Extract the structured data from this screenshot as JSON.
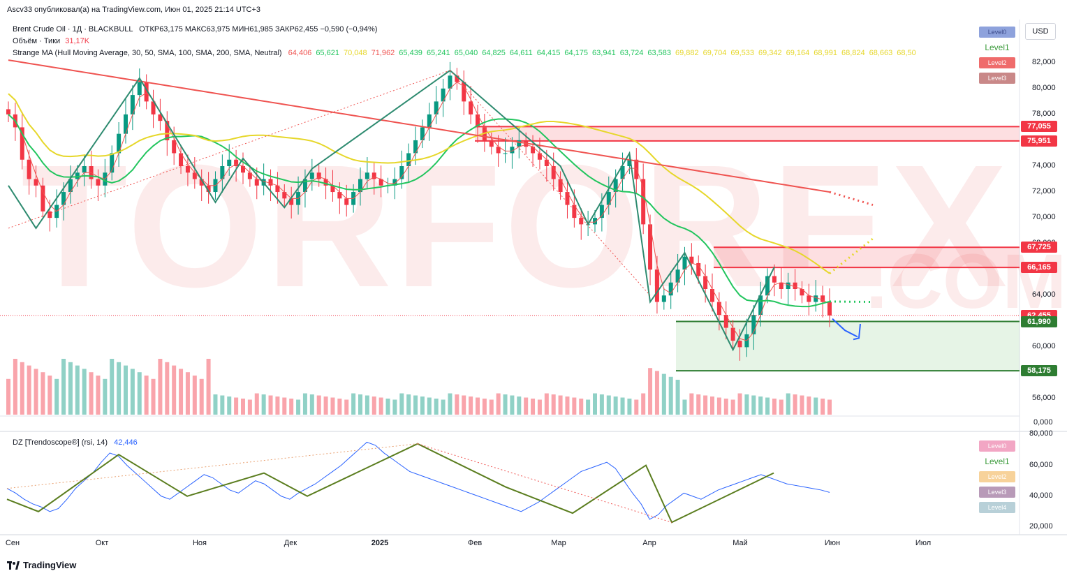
{
  "header": {
    "author_line": "Ascv33 опубликовал(а) на TradingView.com, Июн 01, 2025 21:14 UTC+3",
    "symbol_line": "Brent Crude Oil · 1Д · BLACKBULL",
    "ohlc": "ОТКР63,175  МАКС63,975  МИН61,985  ЗАКР62,455  −0,590 (−0,94%)",
    "volume_label": "Объём · Тики",
    "volume_value": "31,17K",
    "ma_label": "Strange MA (Hull Moving Average, 30, 50, SMA, 100, SMA, 200, SMA, Neutral)",
    "ma_values": [
      {
        "v": "64,406",
        "color": "#ef5350"
      },
      {
        "v": "65,621",
        "color": "#22c55e"
      },
      {
        "v": "70,048",
        "color": "#e6d72a"
      },
      {
        "v": "71,962",
        "color": "#ef5350"
      },
      {
        "v": "65,439",
        "color": "#22c55e"
      },
      {
        "v": "65,241",
        "color": "#22c55e"
      },
      {
        "v": "65,040",
        "color": "#22c55e"
      },
      {
        "v": "64,825",
        "color": "#22c55e"
      },
      {
        "v": "64,611",
        "color": "#22c55e"
      },
      {
        "v": "64,415",
        "color": "#22c55e"
      },
      {
        "v": "64,175",
        "color": "#22c55e"
      },
      {
        "v": "63,941",
        "color": "#22c55e"
      },
      {
        "v": "63,724",
        "color": "#22c55e"
      },
      {
        "v": "63,583",
        "color": "#22c55e"
      },
      {
        "v": "69,882",
        "color": "#e6d72a"
      },
      {
        "v": "69,704",
        "color": "#e6d72a"
      },
      {
        "v": "69,533",
        "color": "#e6d72a"
      },
      {
        "v": "69,342",
        "color": "#e6d72a"
      },
      {
        "v": "69,164",
        "color": "#e6d72a"
      },
      {
        "v": "68,991",
        "color": "#e6d72a"
      },
      {
        "v": "68,824",
        "color": "#e6d72a"
      },
      {
        "v": "68,663",
        "color": "#e6d72a"
      },
      {
        "v": "68,50",
        "color": "#e6d72a"
      }
    ],
    "currency": "USD"
  },
  "levels_main": [
    {
      "label": "Level0",
      "bg": "#8ea2dc",
      "fg": "#3b4a8a"
    },
    {
      "label": "Level1",
      "bg": "#ffffff",
      "fg": "#3a9a3a"
    },
    {
      "label": "Level2",
      "bg": "#ef6b6b",
      "fg": "#ffffff"
    },
    {
      "label": "Level3",
      "bg": "#c98888",
      "fg": "#ffffff"
    }
  ],
  "levels_rsi": [
    {
      "label": "Level0",
      "bg": "#f2a6c4",
      "fg": "#ffffff"
    },
    {
      "label": "Level1",
      "bg": "#ffffff",
      "fg": "#3a9a3a"
    },
    {
      "label": "Level2",
      "bg": "#f7d29a",
      "fg": "#ffffff"
    },
    {
      "label": "Level3",
      "bg": "#b89ab8",
      "fg": "#ffffff"
    },
    {
      "label": "Level4",
      "bg": "#b8d0d8",
      "fg": "#ffffff"
    }
  ],
  "watermark": {
    "main": "TORFOREX",
    "suffix": ".COM"
  },
  "rsi_panel": {
    "label": "DZ [Trendoscope®] (rsi, 14)",
    "value": "42,446"
  },
  "footer": {
    "brand": "TradingView"
  },
  "chart_data": [
    {
      "type": "candlestick",
      "title": "Brent Crude Oil · 1Д · BLACKBULL",
      "y_axis_ticks": [
        "82,000",
        "80,000",
        "78,000",
        "76,000",
        "74,000",
        "72,000",
        "70,000",
        "68,000",
        "66,000",
        "64,000",
        "62,000",
        "60,000",
        "58,000",
        "56,000"
      ],
      "y_tick_values": [
        82,
        80,
        78,
        76,
        74,
        72,
        70,
        68,
        66,
        64,
        62,
        60,
        58,
        56
      ],
      "ylim": [
        55,
        83.5
      ],
      "x_labels": [
        "Сен",
        "Окт",
        "Ноя",
        "Дек",
        "2025",
        "Фев",
        "Мар",
        "Апр",
        "Май",
        "Июн",
        "Июл"
      ],
      "price_tags": [
        {
          "value": "77,055",
          "color": "#f23645"
        },
        {
          "value": "75,951",
          "color": "#f23645"
        },
        {
          "value": "67,725",
          "color": "#f23645"
        },
        {
          "value": "66,165",
          "color": "#f23645"
        },
        {
          "value": "62,455",
          "color": "#f23645"
        },
        {
          "value": "61,990",
          "color": "#2e7d32"
        },
        {
          "value": "58,175",
          "color": "#2e7d32"
        }
      ],
      "zones": [
        {
          "type": "resistance",
          "from": 75.951,
          "to": 77.055
        },
        {
          "type": "resistance",
          "from": 66.165,
          "to": 67.725
        },
        {
          "type": "support",
          "from": 58.175,
          "to": 61.99
        }
      ],
      "zigzag_pivots": [
        {
          "date": "Сен",
          "price": 72.5
        },
        {
          "date": "Сен",
          "price": 69.2
        },
        {
          "date": "Окт",
          "price": 80.8
        },
        {
          "date": "Ноя",
          "price": 71.2
        },
        {
          "date": "Ноя",
          "price": 74.6
        },
        {
          "date": "Дек",
          "price": 70.8
        },
        {
          "date": "Дек",
          "price": 73.8
        },
        {
          "date": "2025",
          "price": 81.4
        },
        {
          "date": "Фев",
          "price": 74.0
        },
        {
          "date": "Мар",
          "price": 69.5
        },
        {
          "date": "Апр",
          "price": 75.0
        },
        {
          "date": "Апр",
          "price": 63.5
        },
        {
          "date": "Апр",
          "price": 67.3
        },
        {
          "date": "Май",
          "price": 59.8
        },
        {
          "date": "Май",
          "price": 66.2
        }
      ],
      "series": [
        {
          "name": "Hull Moving Average 30",
          "color": "#ef5350"
        },
        {
          "name": "SMA 50",
          "color": "#22c55e"
        },
        {
          "name": "SMA 100",
          "color": "#e6d72a"
        },
        {
          "name": "SMA 200",
          "color": "#ef5350"
        }
      ],
      "closes": [
        78.0,
        77.0,
        74.5,
        73.0,
        72.5,
        70.5,
        70.0,
        71.0,
        72.0,
        73.0,
        73.5,
        74.0,
        73.0,
        72.5,
        73.5,
        75.0,
        76.5,
        78.0,
        79.5,
        80.5,
        79.0,
        78.0,
        77.5,
        76.0,
        75.0,
        74.0,
        73.5,
        73.0,
        72.5,
        72.0,
        73.0,
        74.0,
        74.5,
        74.0,
        73.5,
        73.0,
        72.5,
        73.0,
        72.5,
        72.0,
        71.5,
        71.0,
        72.0,
        73.0,
        73.5,
        73.0,
        72.5,
        72.0,
        71.5,
        71.0,
        72.0,
        73.0,
        73.5,
        73.0,
        72.5,
        72.5,
        73.0,
        74.0,
        75.0,
        76.0,
        77.0,
        78.0,
        79.0,
        80.0,
        81.0,
        80.5,
        79.0,
        78.0,
        77.0,
        76.0,
        75.5,
        75.0,
        75.0,
        75.5,
        76.0,
        75.5,
        75.0,
        74.5,
        74.0,
        73.0,
        72.0,
        71.0,
        70.0,
        69.5,
        69.5,
        70.0,
        71.0,
        72.0,
        73.0,
        74.0,
        74.5,
        73.0,
        69.5,
        66.0,
        63.5,
        64.0,
        65.0,
        66.0,
        67.0,
        66.5,
        65.5,
        64.5,
        63.5,
        62.5,
        61.5,
        60.5,
        60.0,
        61.0,
        62.5,
        64.0,
        65.5,
        65.0,
        64.5,
        65.0,
        64.5,
        64.0,
        63.5,
        64.0,
        63.5,
        62.455
      ],
      "volume_label": "Объём · Тики",
      "volume_value": "31,17K",
      "volume_axis_label": "0,000"
    },
    {
      "type": "line",
      "title": "DZ [Trendoscope®] (rsi, 14)",
      "y_axis_ticks": [
        "80,000",
        "60,000",
        "40,000",
        "20,000"
      ],
      "y_tick_values": [
        80,
        60,
        40,
        20
      ],
      "ylim": [
        15,
        82
      ],
      "last_value": 42.446,
      "values": [
        45,
        42,
        38,
        35,
        33,
        30,
        32,
        38,
        45,
        50,
        55,
        62,
        68,
        66,
        60,
        55,
        50,
        45,
        40,
        38,
        42,
        46,
        50,
        54,
        52,
        48,
        44,
        42,
        46,
        50,
        48,
        44,
        40,
        38,
        42,
        45,
        48,
        52,
        56,
        60,
        65,
        70,
        75,
        73,
        68,
        64,
        60,
        56,
        54,
        52,
        50,
        48,
        46,
        44,
        42,
        40,
        38,
        36,
        34,
        32,
        30,
        33,
        36,
        40,
        44,
        48,
        52,
        56,
        58,
        60,
        62,
        58,
        50,
        42,
        35,
        25,
        28,
        34,
        38,
        42,
        40,
        38,
        41,
        44,
        46,
        48,
        50,
        52,
        54,
        52,
        50,
        48,
        47,
        46,
        45,
        44,
        42.446
      ],
      "zigzag": [
        38,
        30,
        67,
        40,
        55,
        40,
        74,
        46,
        29,
        60,
        23,
        55
      ]
    }
  ]
}
